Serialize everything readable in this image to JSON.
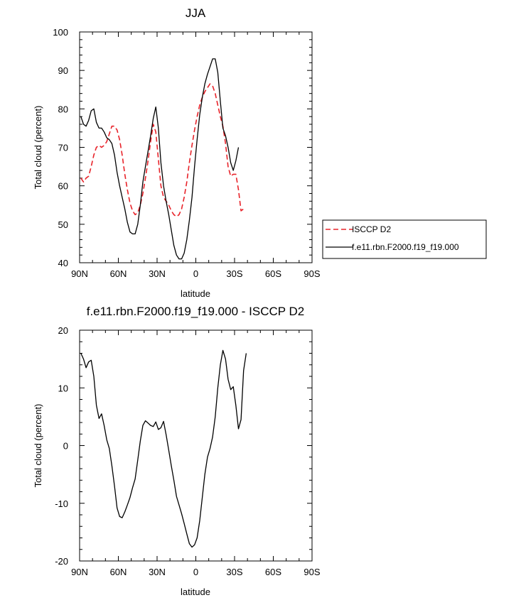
{
  "chart_data": [
    {
      "type": "line",
      "title": "JJA",
      "xlabel": "latitude",
      "ylabel": "Total cloud (percent)",
      "xlim": [
        90,
        -90
      ],
      "ylim": [
        40,
        100
      ],
      "x_ticks": [
        90,
        60,
        30,
        0,
        -30,
        -60,
        -90
      ],
      "x_tick_labels": [
        "90N",
        "60N",
        "30N",
        "0",
        "30S",
        "60S",
        "90S"
      ],
      "y_ticks": [
        40,
        50,
        60,
        70,
        80,
        90,
        100
      ],
      "y_tick_labels": [
        "40",
        "50",
        "60",
        "70",
        "80",
        "90",
        "100"
      ],
      "legend_position": "right",
      "series": [
        {
          "name": "ISCCP D2",
          "color": "#e8232a",
          "style": "dashed",
          "points": [
            [
              89,
              62
            ],
            [
              87,
              61
            ],
            [
              85,
              62
            ],
            [
              83,
              62.5
            ],
            [
              81,
              65
            ],
            [
              79,
              68
            ],
            [
              77,
              70
            ],
            [
              75,
              70.5
            ],
            [
              73,
              70
            ],
            [
              71,
              70.5
            ],
            [
              69,
              71.5
            ],
            [
              67,
              73.5
            ],
            [
              65,
              75.5
            ],
            [
              63,
              75.5
            ],
            [
              61,
              74.5
            ],
            [
              59,
              72
            ],
            [
              57,
              68
            ],
            [
              55,
              63
            ],
            [
              53,
              59
            ],
            [
              51,
              55.5
            ],
            [
              49,
              53.5
            ],
            [
              47,
              52.5
            ],
            [
              45,
              53
            ],
            [
              43,
              55
            ],
            [
              41,
              58
            ],
            [
              39,
              62
            ],
            [
              37,
              66.5
            ],
            [
              35,
              71.5
            ],
            [
              33,
              76
            ],
            [
              31,
              74
            ],
            [
              29,
              67
            ],
            [
              27,
              60
            ],
            [
              25,
              57
            ],
            [
              23,
              56
            ],
            [
              21,
              55
            ],
            [
              19,
              53.5
            ],
            [
              17,
              52.5
            ],
            [
              15,
              52
            ],
            [
              13,
              52.5
            ],
            [
              11,
              54
            ],
            [
              9,
              57
            ],
            [
              7,
              61
            ],
            [
              5,
              66
            ],
            [
              3,
              70.5
            ],
            [
              1,
              74.5
            ],
            [
              -1,
              78
            ],
            [
              -3,
              81
            ],
            [
              -5,
              83
            ],
            [
              -7,
              84.5
            ],
            [
              -9,
              85.5
            ],
            [
              -11,
              86.5
            ],
            [
              -13,
              86
            ],
            [
              -15,
              84
            ],
            [
              -17,
              81
            ],
            [
              -19,
              78
            ],
            [
              -21,
              75.5
            ],
            [
              -23,
              71
            ],
            [
              -25,
              65
            ],
            [
              -27,
              62.5
            ],
            [
              -29,
              63
            ],
            [
              -31,
              63
            ],
            [
              -33,
              59
            ],
            [
              -35,
              53.5
            ],
            [
              -37,
              54
            ]
          ]
        },
        {
          "name": "f.e11.rbn.F2000.f19_f19.000",
          "color": "#000000",
          "style": "solid",
          "points": [
            [
              89,
              78
            ],
            [
              87,
              76
            ],
            [
              85,
              75.5
            ],
            [
              83,
              77
            ],
            [
              81,
              79.5
            ],
            [
              79,
              80
            ],
            [
              77,
              76.5
            ],
            [
              75,
              75
            ],
            [
              73,
              75
            ],
            [
              71,
              74
            ],
            [
              69,
              72.5
            ],
            [
              67,
              72
            ],
            [
              65,
              71
            ],
            [
              63,
              68
            ],
            [
              61,
              63.5
            ],
            [
              59,
              60
            ],
            [
              57,
              57
            ],
            [
              55,
              54
            ],
            [
              53,
              50.5
            ],
            [
              51,
              48
            ],
            [
              49,
              47.5
            ],
            [
              47,
              47.5
            ],
            [
              45,
              50
            ],
            [
              43,
              55
            ],
            [
              41,
              61
            ],
            [
              39,
              65
            ],
            [
              37,
              69
            ],
            [
              35,
              73
            ],
            [
              33,
              77.5
            ],
            [
              31,
              80.5
            ],
            [
              29,
              75
            ],
            [
              27,
              66
            ],
            [
              25,
              60
            ],
            [
              23,
              56
            ],
            [
              21,
              52.5
            ],
            [
              19,
              48.5
            ],
            [
              17,
              44.5
            ],
            [
              15,
              42
            ],
            [
              13,
              41
            ],
            [
              11,
              41
            ],
            [
              9,
              42.5
            ],
            [
              7,
              46
            ],
            [
              5,
              51
            ],
            [
              3,
              57
            ],
            [
              1,
              65
            ],
            [
              -1,
              72
            ],
            [
              -3,
              78.5
            ],
            [
              -5,
              83
            ],
            [
              -7,
              86.5
            ],
            [
              -9,
              89
            ],
            [
              -11,
              91
            ],
            [
              -13,
              93
            ],
            [
              -15,
              93
            ],
            [
              -17,
              89.5
            ],
            [
              -19,
              82
            ],
            [
              -21,
              75
            ],
            [
              -23,
              73
            ],
            [
              -25,
              70
            ],
            [
              -27,
              66
            ],
            [
              -29,
              64
            ],
            [
              -31,
              66.5
            ],
            [
              -33,
              70
            ]
          ]
        }
      ]
    },
    {
      "type": "line",
      "title": "f.e11.rbn.F2000.f19_f19.000 - ISCCP D2",
      "xlabel": "latitude",
      "ylabel": "Total cloud (percent)",
      "xlim": [
        90,
        -90
      ],
      "ylim": [
        -20,
        20
      ],
      "x_ticks": [
        90,
        60,
        30,
        0,
        -30,
        -60,
        -90
      ],
      "x_tick_labels": [
        "90N",
        "60N",
        "30N",
        "0",
        "30S",
        "60S",
        "90S"
      ],
      "y_ticks": [
        -20,
        -10,
        0,
        10,
        20
      ],
      "y_tick_labels": [
        "-20",
        "-10",
        "0",
        "10",
        "20"
      ],
      "series": [
        {
          "color": "#000000",
          "style": "solid",
          "points": [
            [
              89,
              16
            ],
            [
              87,
              15
            ],
            [
              85,
              13.5
            ],
            [
              83,
              14.5
            ],
            [
              81,
              14.8
            ],
            [
              79,
              12
            ],
            [
              77,
              7
            ],
            [
              75,
              4.7
            ],
            [
              73,
              5.5
            ],
            [
              71,
              3.5
            ],
            [
              69,
              1
            ],
            [
              67,
              -0.5
            ],
            [
              65,
              -3.5
            ],
            [
              63,
              -7
            ],
            [
              61,
              -10.8
            ],
            [
              59,
              -12.3
            ],
            [
              57,
              -12.5
            ],
            [
              55,
              -11.5
            ],
            [
              53,
              -10.3
            ],
            [
              51,
              -9
            ],
            [
              49,
              -7.3
            ],
            [
              47,
              -5.8
            ],
            [
              45,
              -2.5
            ],
            [
              43,
              0.8
            ],
            [
              41,
              3.5
            ],
            [
              39,
              4.3
            ],
            [
              37,
              3.9
            ],
            [
              35,
              3.5
            ],
            [
              33,
              3.3
            ],
            [
              31,
              4.1
            ],
            [
              29,
              2.8
            ],
            [
              27,
              3.1
            ],
            [
              25,
              4.2
            ],
            [
              23,
              1.9
            ],
            [
              21,
              -0.8
            ],
            [
              19,
              -3.5
            ],
            [
              17,
              -6
            ],
            [
              15,
              -8.8
            ],
            [
              13,
              -10.3
            ],
            [
              11,
              -11.8
            ],
            [
              9,
              -13.5
            ],
            [
              7,
              -15.3
            ],
            [
              5,
              -17
            ],
            [
              3,
              -17.6
            ],
            [
              1,
              -17.2
            ],
            [
              -1,
              -16
            ],
            [
              -3,
              -13
            ],
            [
              -5,
              -9
            ],
            [
              -7,
              -5
            ],
            [
              -9,
              -2
            ],
            [
              -11,
              -0.5
            ],
            [
              -13,
              1.5
            ],
            [
              -15,
              5
            ],
            [
              -17,
              10
            ],
            [
              -19,
              14
            ],
            [
              -21,
              16.5
            ],
            [
              -23,
              15
            ],
            [
              -25,
              11.5
            ],
            [
              -27,
              9.7
            ],
            [
              -29,
              10.2
            ],
            [
              -31,
              7
            ],
            [
              -33,
              2.9
            ],
            [
              -35,
              4.5
            ],
            [
              -37,
              13
            ],
            [
              -39,
              16
            ]
          ]
        }
      ]
    }
  ]
}
